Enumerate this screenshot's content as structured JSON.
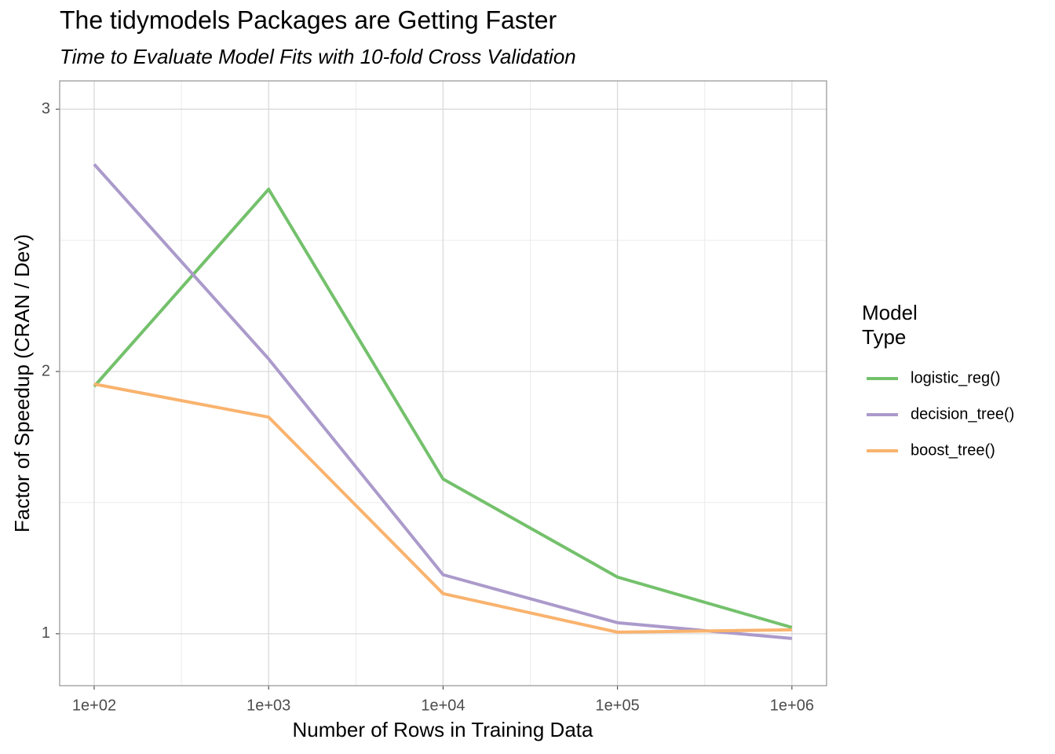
{
  "chart_data": {
    "type": "line",
    "title": "The tidymodels Packages are Getting Faster",
    "subtitle": "Time to Evaluate Model Fits with 10-fold Cross Validation",
    "x_label": "Number of Rows in Training Data",
    "y_label": "Factor of Speedup (CRAN / Dev)",
    "legend_title": "Model Type",
    "x": [
      100,
      1000,
      10000,
      100000,
      1000000
    ],
    "xscale": "log",
    "xlim": [
      63.4,
      1580000
    ],
    "xticks": [
      {
        "value": 100,
        "label": "1e+02"
      },
      {
        "value": 1000,
        "label": "1e+03"
      },
      {
        "value": 10000,
        "label": "1e+04"
      },
      {
        "value": 100000,
        "label": "1e+05"
      },
      {
        "value": 1000000,
        "label": "1e+06"
      }
    ],
    "ylim": [
      0.802,
      3.108
    ],
    "yticks": [
      1,
      2,
      3
    ],
    "grid": true,
    "series": [
      {
        "name": "logistic_reg()",
        "color": "#74c16c",
        "values": [
          1.943,
          2.695,
          1.59,
          1.216,
          1.024
        ]
      },
      {
        "name": "decision_tree()",
        "color": "#ab9acb",
        "values": [
          2.79,
          2.048,
          1.225,
          1.042,
          0.982
        ]
      },
      {
        "name": "boost_tree()",
        "color": "#f9b36e",
        "values": [
          1.952,
          1.826,
          1.153,
          1.006,
          1.015
        ]
      }
    ]
  }
}
